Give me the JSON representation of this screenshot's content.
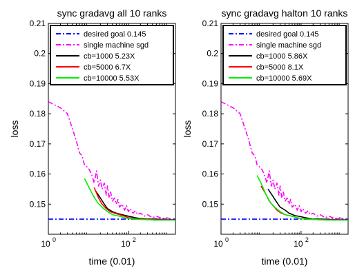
{
  "chart_data": [
    {
      "type": "line",
      "title": "sync gradavg all 10 ranks",
      "xlabel": "time (0.01)",
      "ylabel": "loss",
      "xscale": "log",
      "xlim": [
        1,
        1500
      ],
      "ylim": [
        0.14,
        0.21
      ],
      "x_ticks": [
        1,
        100
      ],
      "x_tick_labels": [
        {
          "base": "10",
          "exp": "0"
        },
        {
          "base": "10",
          "exp": "2"
        }
      ],
      "y_ticks": [
        "0.15",
        "0.16",
        "0.17",
        "0.18",
        "0.19",
        "0.2",
        "0.21"
      ],
      "legend_position": "top",
      "series": [
        {
          "name": "desired goal 0.145",
          "color": "#0000ff",
          "style": "dashdot",
          "x": [
            1,
            1500
          ],
          "y": [
            0.145,
            0.145
          ]
        },
        {
          "name": "single machine sgd",
          "color": "#ff00ff",
          "style": "dashdot",
          "x": [
            1,
            2,
            3,
            4,
            5,
            6,
            7,
            8,
            10,
            12,
            14,
            16,
            18,
            20,
            22,
            25,
            28,
            30,
            33,
            36,
            40,
            45,
            50,
            55,
            60,
            70,
            80,
            90,
            100,
            110,
            130,
            150,
            170,
            200,
            250,
            300,
            400,
            500,
            700,
            900,
            1200,
            1500
          ],
          "y": [
            0.184,
            0.182,
            0.18,
            0.175,
            0.171,
            0.167,
            0.166,
            0.163,
            0.162,
            0.16,
            0.157,
            0.161,
            0.156,
            0.158,
            0.155,
            0.157,
            0.153,
            0.156,
            0.152,
            0.154,
            0.151,
            0.152,
            0.15,
            0.1515,
            0.149,
            0.15,
            0.148,
            0.1495,
            0.1475,
            0.1485,
            0.147,
            0.1478,
            0.1465,
            0.147,
            0.146,
            0.1465,
            0.1455,
            0.146,
            0.1452,
            0.1455,
            0.145,
            0.1452
          ]
        },
        {
          "name": "cb=1000 5.23X",
          "color": "#000000",
          "style": "solid",
          "x": [
            15,
            20,
            25,
            30,
            40,
            50,
            70,
            100,
            150,
            200,
            300,
            500,
            1000,
            1500
          ],
          "y": [
            0.1545,
            0.152,
            0.15,
            0.1485,
            0.1475,
            0.147,
            0.1465,
            0.146,
            0.1455,
            0.1452,
            0.145,
            0.145,
            0.1448,
            0.1448
          ]
        },
        {
          "name": "cb=5000 6.7X",
          "color": "#ff0000",
          "style": "solid",
          "x": [
            14,
            18,
            22,
            28,
            35,
            45,
            60,
            80,
            100,
            150,
            200,
            300,
            500,
            1000
          ],
          "y": [
            0.1555,
            0.152,
            0.15,
            0.1485,
            0.1475,
            0.147,
            0.1465,
            0.146,
            0.1455,
            0.1452,
            0.145,
            0.1449,
            0.1448,
            0.1448
          ]
        },
        {
          "name": "cb=10000 5.53X",
          "color": "#00ee00",
          "style": "solid",
          "x": [
            8,
            10,
            13,
            17,
            22,
            30,
            40,
            60,
            80,
            100,
            150,
            200,
            300,
            500,
            1000,
            1500
          ],
          "y": [
            0.1585,
            0.156,
            0.153,
            0.1505,
            0.149,
            0.1475,
            0.1465,
            0.146,
            0.1455,
            0.1452,
            0.145,
            0.1449,
            0.1448,
            0.1447,
            0.1447,
            0.1447
          ]
        }
      ]
    },
    {
      "type": "line",
      "title": "sync gradavg halton 10 ranks",
      "xlabel": "time (0.01)",
      "ylabel": "loss",
      "xscale": "log",
      "xlim": [
        1,
        1500
      ],
      "ylim": [
        0.14,
        0.21
      ],
      "x_ticks": [
        1,
        100
      ],
      "x_tick_labels": [
        {
          "base": "10",
          "exp": "0"
        },
        {
          "base": "10",
          "exp": "2"
        }
      ],
      "y_ticks": [
        "0.15",
        "0.16",
        "0.17",
        "0.18",
        "0.19",
        "0.2",
        "0.21"
      ],
      "legend_position": "top",
      "series": [
        {
          "name": "desired goal 0.145",
          "color": "#0000ff",
          "style": "dashdot",
          "x": [
            1,
            1500
          ],
          "y": [
            0.145,
            0.145
          ]
        },
        {
          "name": "single machine sgd",
          "color": "#ff00ff",
          "style": "dashdot",
          "x": [
            1,
            2,
            3,
            4,
            5,
            6,
            7,
            8,
            10,
            12,
            14,
            16,
            18,
            20,
            22,
            25,
            28,
            30,
            33,
            36,
            40,
            45,
            50,
            55,
            60,
            70,
            80,
            90,
            100,
            110,
            130,
            150,
            170,
            200,
            250,
            300,
            400,
            500,
            700,
            900,
            1200,
            1500
          ],
          "y": [
            0.184,
            0.182,
            0.18,
            0.175,
            0.171,
            0.167,
            0.166,
            0.163,
            0.162,
            0.16,
            0.157,
            0.161,
            0.156,
            0.158,
            0.155,
            0.157,
            0.153,
            0.156,
            0.152,
            0.154,
            0.151,
            0.152,
            0.15,
            0.1515,
            0.149,
            0.15,
            0.148,
            0.1495,
            0.1475,
            0.1485,
            0.147,
            0.1478,
            0.1465,
            0.147,
            0.146,
            0.1465,
            0.1455,
            0.146,
            0.1452,
            0.1455,
            0.145,
            0.1452
          ]
        },
        {
          "name": "cb=1000 5.86X",
          "color": "#000000",
          "style": "solid",
          "x": [
            15,
            20,
            25,
            30,
            40,
            50,
            70,
            100,
            150,
            200,
            300,
            500,
            1000,
            1500
          ],
          "y": [
            0.155,
            0.1525,
            0.1505,
            0.149,
            0.148,
            0.147,
            0.1462,
            0.1458,
            0.1453,
            0.145,
            0.145,
            0.1449,
            0.1448,
            0.1448
          ]
        },
        {
          "name": "cb=5000 8.1X",
          "color": "#ff0000",
          "style": "solid",
          "x": [
            10,
            13,
            16,
            20,
            25,
            30,
            40,
            60,
            80,
            100,
            150,
            200,
            300,
            500,
            1000
          ],
          "y": [
            0.156,
            0.1535,
            0.151,
            0.1495,
            0.148,
            0.1472,
            0.1465,
            0.146,
            0.1455,
            0.1452,
            0.145,
            0.1449,
            0.1448,
            0.1448,
            0.1448
          ]
        },
        {
          "name": "cb=10000 5.69X",
          "color": "#00ee00",
          "style": "solid",
          "x": [
            8,
            10,
            13,
            17,
            22,
            30,
            40,
            60,
            80,
            100,
            150,
            200,
            300,
            500,
            1000,
            1500
          ],
          "y": [
            0.1595,
            0.157,
            0.1535,
            0.1505,
            0.149,
            0.1475,
            0.1465,
            0.146,
            0.1455,
            0.1452,
            0.145,
            0.1449,
            0.1448,
            0.1447,
            0.1447,
            0.1447
          ]
        }
      ]
    }
  ]
}
